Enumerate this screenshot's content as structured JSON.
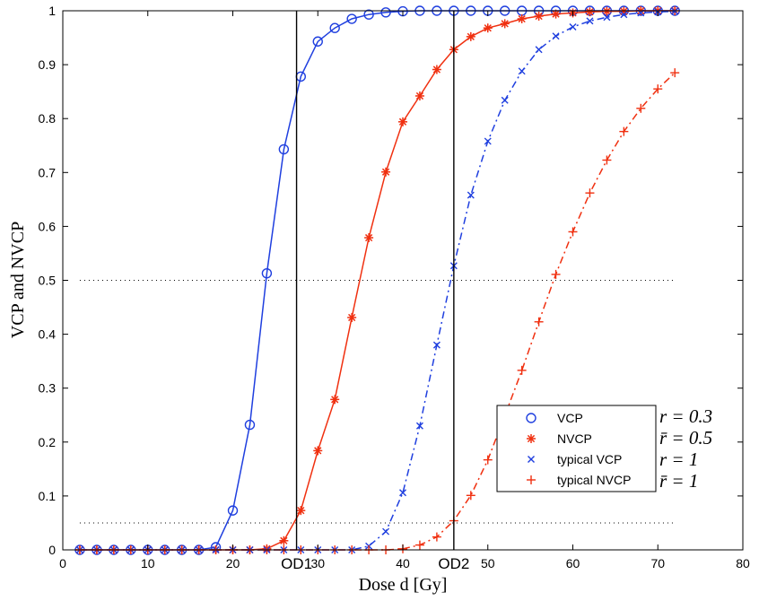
{
  "chart_data": {
    "type": "line",
    "xlabel": "Dose d [Gy]",
    "ylabel": "VCP and NVCP",
    "xlim": [
      0,
      80
    ],
    "ylim": [
      0,
      1
    ],
    "xticks": [
      "0",
      "10",
      "20",
      "30",
      "40",
      "50",
      "60",
      "70",
      "80"
    ],
    "yticks": [
      "0",
      "0.1",
      "0.2",
      "0.3",
      "0.4",
      "0.5",
      "0.6",
      "0.7",
      "0.8",
      "0.9",
      "1"
    ],
    "grid": false,
    "legend_position": "lower-right",
    "x": [
      2,
      4,
      6,
      8,
      10,
      12,
      14,
      16,
      18,
      20,
      22,
      24,
      26,
      28,
      30,
      32,
      34,
      36,
      38,
      40,
      42,
      44,
      46,
      48,
      50,
      52,
      54,
      56,
      58,
      60,
      62,
      64,
      66,
      68,
      70,
      72
    ],
    "series": [
      {
        "name": "VCP",
        "color": "#1f3fdf",
        "line_style": "solid",
        "marker": "circle",
        "values": [
          0,
          0,
          0,
          0,
          0,
          0,
          0,
          0,
          0.005,
          0.073,
          0.232,
          0.513,
          0.743,
          0.878,
          0.943,
          0.968,
          0.985,
          0.993,
          0.997,
          0.999,
          1,
          1,
          1,
          1,
          1,
          1,
          1,
          1,
          1,
          1,
          1,
          1,
          1,
          1,
          1,
          1
        ]
      },
      {
        "name": "NVCP",
        "color": "#f03010",
        "line_style": "solid",
        "marker": "asterisk",
        "values": [
          0,
          0,
          0,
          0,
          0,
          0,
          0,
          0,
          0,
          0,
          0,
          0.002,
          0.017,
          0.073,
          0.184,
          0.279,
          0.431,
          0.579,
          0.701,
          0.794,
          0.842,
          0.891,
          0.928,
          0.952,
          0.968,
          0.976,
          0.985,
          0.99,
          0.994,
          0.996,
          0.998,
          0.999,
          0.999,
          1,
          1,
          1
        ]
      },
      {
        "name": "typical VCP",
        "color": "#1f3fdf",
        "line_style": "dashdot",
        "marker": "x",
        "values": [
          0,
          0,
          0,
          0,
          0,
          0,
          0,
          0,
          0,
          0,
          0,
          0,
          0,
          0,
          0,
          0,
          0,
          0.007,
          0.034,
          0.106,
          0.23,
          0.38,
          0.527,
          0.658,
          0.758,
          0.834,
          0.888,
          0.928,
          0.953,
          0.97,
          0.981,
          0.988,
          0.993,
          0.996,
          0.998,
          0.999
        ]
      },
      {
        "name": "typical NVCP",
        "color": "#f03010",
        "line_style": "dashdot",
        "marker": "plus",
        "values": [
          0,
          0,
          0,
          0,
          0,
          0,
          0,
          0,
          0,
          0,
          0,
          0,
          0,
          0,
          0,
          0,
          0,
          0,
          0,
          0.002,
          0.009,
          0.024,
          0.054,
          0.101,
          0.167,
          0.249,
          0.333,
          0.423,
          0.511,
          0.59,
          0.662,
          0.723,
          0.776,
          0.819,
          0.855,
          0.885
        ]
      }
    ],
    "reference_lines": {
      "vertical": [
        {
          "x": 27.5,
          "label": "OD1"
        },
        {
          "x": 46,
          "label": "OD2"
        }
      ],
      "horizontal": [
        {
          "y": 0.5,
          "style": "dotted"
        },
        {
          "y": 0.05,
          "style": "dotted"
        }
      ]
    },
    "annotations": [
      "r = 0.3",
      "r̄ = 0.5",
      "r = 1",
      "r̄ = 1"
    ]
  }
}
